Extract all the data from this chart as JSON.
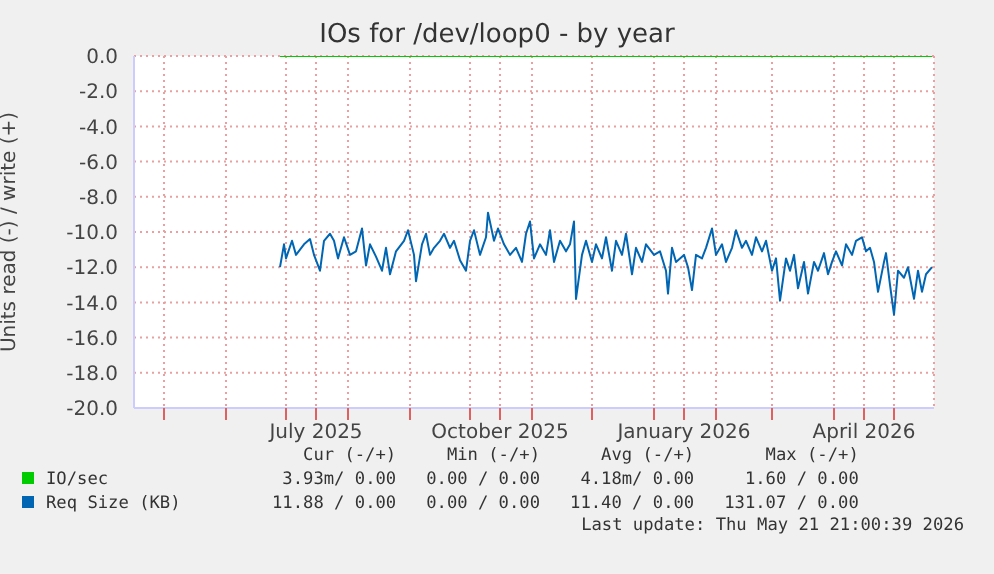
{
  "chart_data": {
    "type": "line",
    "title": "IOs for /dev/loop0 - by year",
    "ylabel": "Units read (-) / write (+)",
    "xlim": [
      "2025-04-16",
      "2026-05-21"
    ],
    "xticks": [
      {
        "value": "2025-05-01",
        "label": null
      },
      {
        "value": "2025-06-01",
        "label": null
      },
      {
        "value": "2025-07-01",
        "label": null
      },
      {
        "value": "2025-07-16",
        "label": "July 2025"
      },
      {
        "value": "2025-08-01",
        "label": null
      },
      {
        "value": "2025-09-01",
        "label": null
      },
      {
        "value": "2025-10-01",
        "label": null
      },
      {
        "value": "2025-10-16",
        "label": "October 2025"
      },
      {
        "value": "2025-11-01",
        "label": null
      },
      {
        "value": "2025-12-01",
        "label": null
      },
      {
        "value": "2026-01-01",
        "label": null
      },
      {
        "value": "2026-01-16",
        "label": "January 2026"
      },
      {
        "value": "2026-02-01",
        "label": null
      },
      {
        "value": "2026-03-01",
        "label": null
      },
      {
        "value": "2026-04-01",
        "label": null
      },
      {
        "value": "2026-04-16",
        "label": "April 2026"
      },
      {
        "value": "2026-05-01",
        "label": null
      }
    ],
    "ylim": [
      -20,
      0
    ],
    "yticks": [
      {
        "value": 0,
        "label": "0.0"
      },
      {
        "value": -2,
        "label": "-2.0"
      },
      {
        "value": -4,
        "label": "-4.0"
      },
      {
        "value": -6,
        "label": "-6.0"
      },
      {
        "value": -8,
        "label": "-8.0"
      },
      {
        "value": -10,
        "label": "-10.0"
      },
      {
        "value": -12,
        "label": "-12.0"
      },
      {
        "value": -14,
        "label": "-14.0"
      },
      {
        "value": -16,
        "label": "-16.0"
      },
      {
        "value": -18,
        "label": "-18.0"
      },
      {
        "value": -20,
        "label": "-20.0"
      }
    ],
    "grid": true,
    "legend": "bottom",
    "marker": "none",
    "line_style": "solid",
    "series": [
      {
        "name": "IO/sec",
        "color": "#00cc00",
        "x": [
          "2025-06-28",
          "2026-05-20"
        ],
        "values": [
          0,
          0
        ]
      },
      {
        "name": "Req Size (KB)",
        "color": "#0066b3",
        "x": [
          "2025-06-28",
          "2025-06-30",
          "2025-07-01",
          "2025-07-04",
          "2025-07-06",
          "2025-07-10",
          "2025-07-13",
          "2025-07-15",
          "2025-07-18",
          "2025-07-20",
          "2025-07-23",
          "2025-07-25",
          "2025-07-27",
          "2025-07-30",
          "2025-08-02",
          "2025-08-05",
          "2025-08-08",
          "2025-08-10",
          "2025-08-12",
          "2025-08-15",
          "2025-08-18",
          "2025-08-20",
          "2025-08-22",
          "2025-08-25",
          "2025-08-29",
          "2025-08-31",
          "2025-09-03",
          "2025-09-04",
          "2025-09-07",
          "2025-09-09",
          "2025-09-11",
          "2025-09-13",
          "2025-09-16",
          "2025-09-18",
          "2025-09-21",
          "2025-09-23",
          "2025-09-26",
          "2025-09-29",
          "2025-10-01",
          "2025-10-03",
          "2025-10-06",
          "2025-10-09",
          "2025-10-10",
          "2025-10-13",
          "2025-10-15",
          "2025-10-18",
          "2025-10-21",
          "2025-10-24",
          "2025-10-27",
          "2025-10-29",
          "2025-10-31",
          "2025-11-02",
          "2025-11-05",
          "2025-11-08",
          "2025-11-10",
          "2025-11-12",
          "2025-11-15",
          "2025-11-18",
          "2025-11-20",
          "2025-11-22",
          "2025-11-23",
          "2025-11-26",
          "2025-11-28",
          "2025-12-01",
          "2025-12-03",
          "2025-12-06",
          "2025-12-08",
          "2025-12-11",
          "2025-12-13",
          "2025-12-16",
          "2025-12-18",
          "2025-12-21",
          "2025-12-23",
          "2025-12-26",
          "2025-12-28",
          "2026-01-01",
          "2026-01-04",
          "2026-01-07",
          "2026-01-08",
          "2026-01-10",
          "2026-01-12",
          "2026-01-16",
          "2026-01-18",
          "2026-01-20",
          "2026-01-22",
          "2026-01-25",
          "2026-01-27",
          "2026-01-30",
          "2026-02-01",
          "2026-02-04",
          "2026-02-06",
          "2026-02-09",
          "2026-02-11",
          "2026-02-14",
          "2026-02-16",
          "2026-02-19",
          "2026-02-21",
          "2026-02-24",
          "2026-02-26",
          "2026-03-01",
          "2026-03-03",
          "2026-03-05",
          "2026-03-08",
          "2026-03-10",
          "2026-03-12",
          "2026-03-14",
          "2026-03-17",
          "2026-03-19",
          "2026-03-22",
          "2026-03-24",
          "2026-03-27",
          "2026-03-29",
          "2026-03-31",
          "2026-04-02",
          "2026-04-05",
          "2026-04-07",
          "2026-04-10",
          "2026-04-12",
          "2026-04-15",
          "2026-04-17",
          "2026-04-19",
          "2026-04-21",
          "2026-04-23",
          "2026-04-26",
          "2026-04-27",
          "2026-04-29",
          "2026-05-01",
          "2026-05-03",
          "2026-05-06",
          "2026-05-08",
          "2026-05-11",
          "2026-05-13",
          "2026-05-15",
          "2026-05-17",
          "2026-05-20"
        ],
        "values": [
          -12.0,
          -10.7,
          -11.5,
          -10.5,
          -11.3,
          -10.7,
          -10.4,
          -11.3,
          -12.2,
          -10.5,
          -10.1,
          -10.5,
          -11.5,
          -10.3,
          -11.3,
          -11.1,
          -9.8,
          -11.9,
          -10.7,
          -11.4,
          -12.2,
          -10.9,
          -12.4,
          -11.1,
          -10.5,
          -9.9,
          -11.3,
          -12.8,
          -10.7,
          -10.1,
          -11.3,
          -10.9,
          -10.5,
          -10.1,
          -10.9,
          -10.5,
          -11.6,
          -12.2,
          -10.5,
          -9.9,
          -11.3,
          -10.3,
          -8.9,
          -10.5,
          -9.8,
          -10.7,
          -11.3,
          -10.9,
          -11.7,
          -10.1,
          -9.4,
          -11.5,
          -10.7,
          -11.3,
          -9.9,
          -11.7,
          -10.5,
          -11.1,
          -10.7,
          -9.4,
          -13.8,
          -11.3,
          -10.5,
          -11.7,
          -10.7,
          -11.5,
          -10.3,
          -12.2,
          -10.5,
          -11.3,
          -10.1,
          -12.4,
          -10.9,
          -11.7,
          -10.7,
          -11.3,
          -11.1,
          -12.2,
          -13.5,
          -10.9,
          -11.7,
          -11.3,
          -12.0,
          -13.3,
          -11.3,
          -11.5,
          -10.9,
          -9.8,
          -11.3,
          -10.7,
          -11.7,
          -10.9,
          -9.9,
          -10.9,
          -10.5,
          -11.3,
          -10.3,
          -11.1,
          -10.5,
          -12.2,
          -11.5,
          -13.9,
          -11.5,
          -12.2,
          -11.3,
          -13.2,
          -11.7,
          -13.5,
          -11.7,
          -12.2,
          -11.2,
          -12.4,
          -11.7,
          -11.1,
          -11.9,
          -10.7,
          -11.3,
          -10.5,
          -10.3,
          -11.1,
          -10.9,
          -11.7,
          -13.4,
          -11.7,
          -11.2,
          -13.0,
          -14.7,
          -12.2,
          -12.6,
          -12.0,
          -13.8,
          -12.2,
          -13.4,
          -12.4,
          -12.0
        ]
      }
    ],
    "annotations": [
      "Cur (-/+)",
      "Min (-/+)",
      "Avg (-/+)",
      "Max (-/+)",
      "3.93m/ 0.00",
      "0.00 / 0.00",
      "4.18m/ 0.00",
      "1.60 / 0.00",
      "11.88 / 0.00",
      "0.00 / 0.00",
      "11.40 / 0.00",
      "131.07 / 0.00",
      "Last update: Thu May 21 21:00:39 2026"
    ]
  }
}
